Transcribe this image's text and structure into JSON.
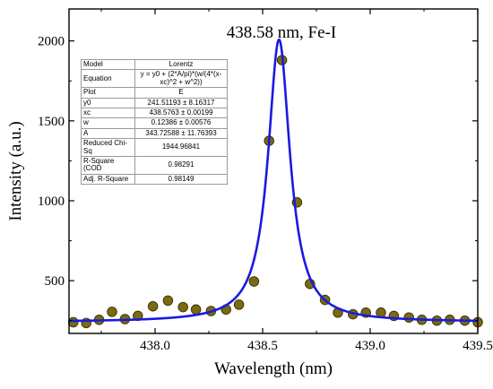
{
  "chart_data": {
    "type": "scatter",
    "title": "438.58 nm, Fe-I",
    "xlabel": "Wavelength (nm)",
    "ylabel": "Intensity (a.u.)",
    "xlim": [
      437.6,
      439.5
    ],
    "ylim": [
      170,
      2200
    ],
    "xticks": [
      438.0,
      438.5,
      439.0,
      439.5
    ],
    "xtick_labels": [
      "438.0",
      "438.5",
      "439.0",
      "439.5"
    ],
    "yticks": [
      500,
      1000,
      1500,
      2000
    ],
    "ytick_labels": [
      "500",
      "1000",
      "1500",
      "2000"
    ],
    "grid": false,
    "series": [
      {
        "kind": "points",
        "color": "#7a6a10",
        "x": [
          437.62,
          437.68,
          437.74,
          437.8,
          437.86,
          437.92,
          437.99,
          438.06,
          438.13,
          438.19,
          438.26,
          438.33,
          438.39,
          438.46,
          438.53,
          438.59,
          438.66,
          438.72,
          438.79,
          438.85,
          438.92,
          438.98,
          439.05,
          439.11,
          439.18,
          439.24,
          439.31,
          439.37,
          439.44,
          439.5
        ],
        "y": [
          240,
          235,
          255,
          305,
          260,
          280,
          340,
          375,
          335,
          320,
          310,
          320,
          350,
          495,
          1375,
          1880,
          990,
          480,
          380,
          300,
          290,
          300,
          300,
          280,
          270,
          255,
          250,
          255,
          250,
          240
        ]
      },
      {
        "kind": "fit",
        "color": "#1a1ae0",
        "model": "Lorentz",
        "y0": 241.51193,
        "xc": 438.5763,
        "w": 0.12386,
        "A": 343.72588
      }
    ]
  },
  "fit_table": {
    "rows": [
      {
        "label": "Model",
        "value": "Lorentz"
      },
      {
        "label": "Equation",
        "value": "y = y0 + (2*A/pi)*(w/(4*(x-xc)^2 + w^2))"
      },
      {
        "label": "Plot",
        "value": "E"
      },
      {
        "label": "y0",
        "value": "241.51193 ± 8.16317"
      },
      {
        "label": "xc",
        "value": "438.5763 ± 0.00199"
      },
      {
        "label": "w",
        "value": "0.12386 ± 0.00576"
      },
      {
        "label": "A",
        "value": "343.72588 ± 11.76393"
      },
      {
        "label": "Reduced Chi-Sq",
        "value": "1944.96841"
      },
      {
        "label": "R-Square (COD",
        "value": "0.98291"
      },
      {
        "label": "Adj. R-Square",
        "value": "0.98149"
      }
    ]
  }
}
